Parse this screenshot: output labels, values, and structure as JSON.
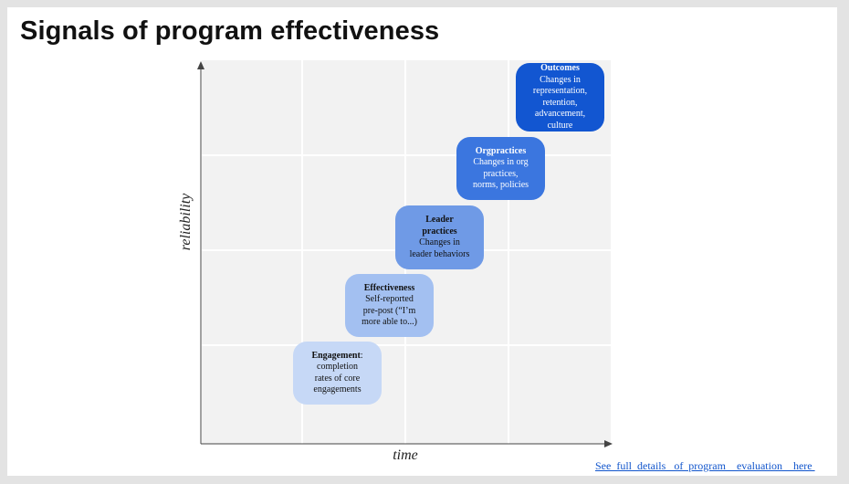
{
  "title": "Signals of program effectiveness",
  "axes": {
    "ylabel": "reliability",
    "xlabel": "time"
  },
  "stages": [
    {
      "title": "Engagement",
      "suffix": ":",
      "body": "completion rates of core engagements",
      "lines": [
        "completion",
        "rates of core",
        "engagements"
      ],
      "color": "#c6d8f6"
    },
    {
      "title": "Effectiveness",
      "suffix": "",
      "body": "Self-reported pre-post (“I’m more able to...)",
      "lines": [
        "Self-reported",
        "pre-post (“I’m",
        "more able to...)"
      ],
      "color": "#a3c0f1"
    },
    {
      "title": "Leader practices",
      "suffix": "",
      "body": "Changes in leader behaviors",
      "lines": [
        "Changes in",
        "leader behaviors"
      ],
      "color": "#6f9ae6"
    },
    {
      "title": "Orgpractices",
      "suffix": "",
      "body": "Changes in org practices, norms, policies",
      "lines": [
        "Changes in org",
        "practices,",
        "norms, policies"
      ],
      "color": "#3b76df"
    },
    {
      "title": "Outcomes",
      "suffix": "",
      "body": "Changes in representation, retention, advancement, culture",
      "lines": [
        "Changes in",
        "representation,",
        "retention,",
        "advancement,",
        "culture"
      ],
      "color": "#1256d1"
    }
  ],
  "footer_link": "See  full  details   of  program    evaluation    here "
}
